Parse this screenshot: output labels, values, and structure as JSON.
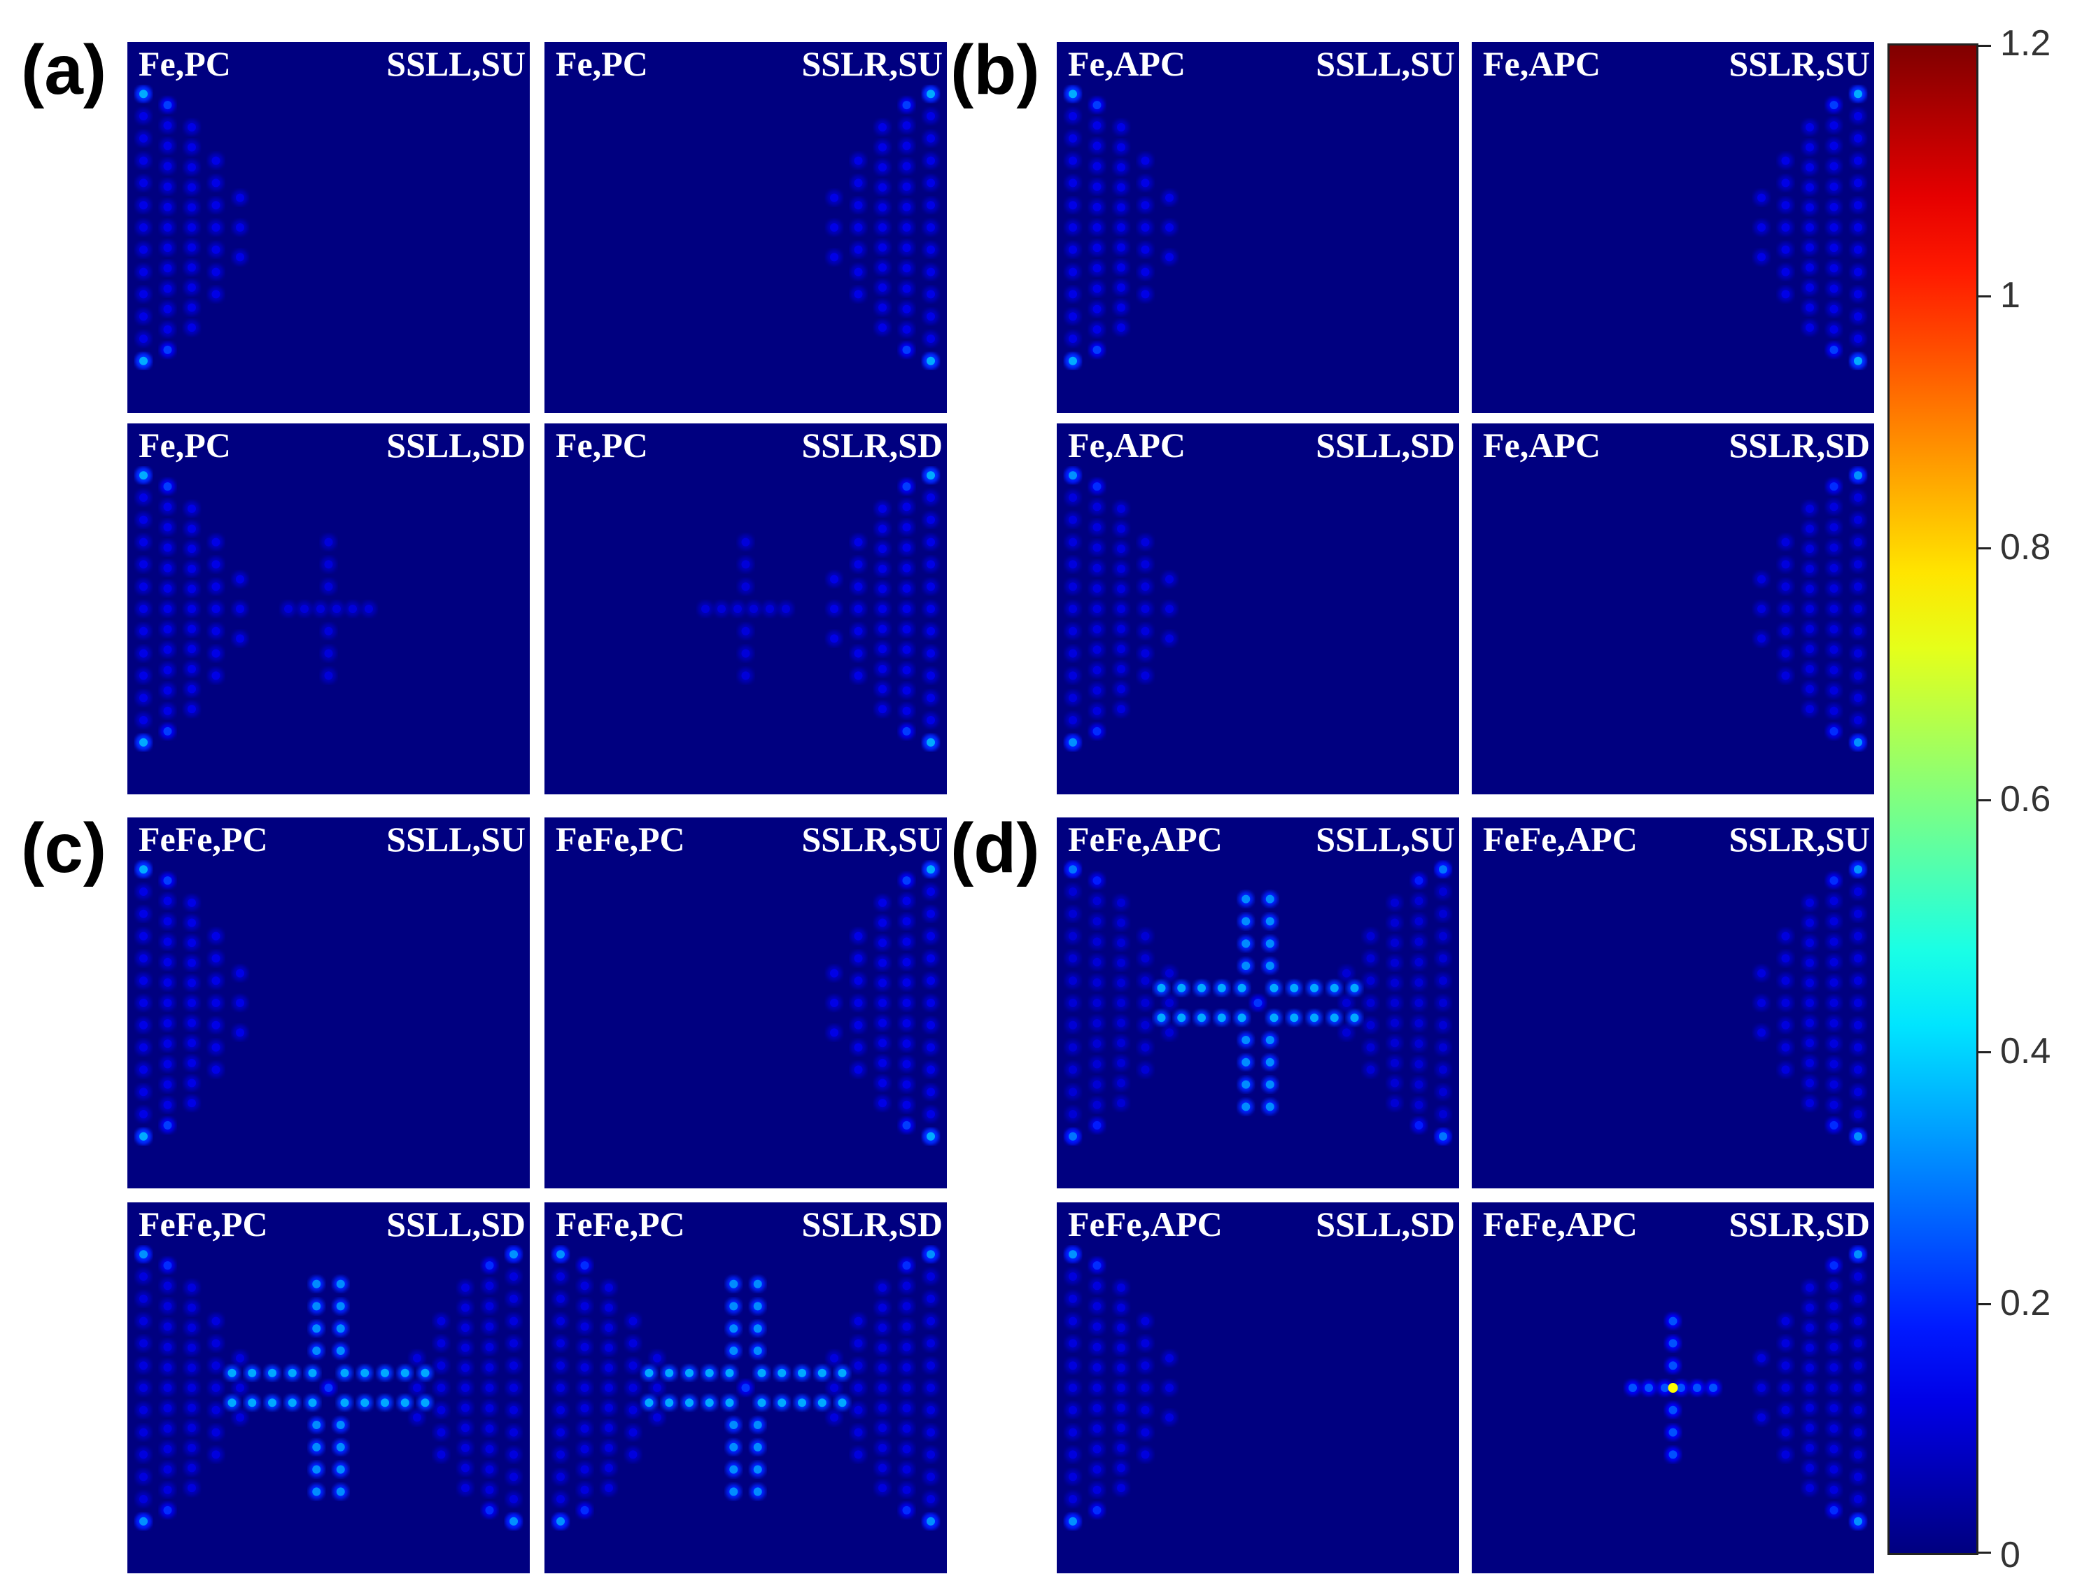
{
  "chart_data": {
    "type": "heatmap",
    "colormap": "jet",
    "colorbar": {
      "min": 0,
      "max": 1.2,
      "ticks": [
        0,
        0.2,
        0.4,
        0.6,
        0.8,
        1,
        1.2
      ],
      "tick_labels": [
        "0",
        "0.2",
        "0.4",
        "0.6",
        "0.8",
        "1",
        "1.2"
      ]
    },
    "panels": [
      {
        "letter": "(a)",
        "subplots": [
          {
            "left_label": "Fe,PC",
            "right_label": "SSLL,SU",
            "pattern": "left",
            "intensity": 0.22
          },
          {
            "left_label": "Fe,PC",
            "right_label": "SSLR,SU",
            "pattern": "right",
            "intensity": 0.22
          },
          {
            "left_label": "Fe,PC",
            "right_label": "SSLL,SD",
            "pattern": "left_center",
            "intensity": 0.22,
            "center_intensity": 0.15
          },
          {
            "left_label": "Fe,PC",
            "right_label": "SSLR,SD",
            "pattern": "right_center",
            "intensity": 0.22,
            "center_intensity": 0.15
          }
        ]
      },
      {
        "letter": "(b)",
        "subplots": [
          {
            "left_label": "Fe,APC",
            "right_label": "SSLL,SU",
            "pattern": "left",
            "intensity": 0.22
          },
          {
            "left_label": "Fe,APC",
            "right_label": "SSLR,SU",
            "pattern": "right",
            "intensity": 0.22
          },
          {
            "left_label": "Fe,APC",
            "right_label": "SSLL,SD",
            "pattern": "left",
            "intensity": 0.2
          },
          {
            "left_label": "Fe,APC",
            "right_label": "SSLR,SD",
            "pattern": "right",
            "intensity": 0.2
          }
        ]
      },
      {
        "letter": "(c)",
        "subplots": [
          {
            "left_label": "FeFe,PC",
            "right_label": "SSLL,SU",
            "pattern": "left",
            "intensity": 0.22
          },
          {
            "left_label": "FeFe,PC",
            "right_label": "SSLR,SU",
            "pattern": "right",
            "intensity": 0.22
          },
          {
            "left_label": "FeFe,PC",
            "right_label": "SSLL,SD",
            "pattern": "both_center",
            "intensity": 0.2,
            "center_intensity": 0.35
          },
          {
            "left_label": "FeFe,PC",
            "right_label": "SSLR,SD",
            "pattern": "both_center",
            "intensity": 0.2,
            "center_intensity": 0.35
          }
        ]
      },
      {
        "letter": "(d)",
        "subplots": [
          {
            "left_label": "FeFe,APC",
            "right_label": "SSLL,SU",
            "pattern": "both_center",
            "intensity": 0.18,
            "center_intensity": 0.35
          },
          {
            "left_label": "FeFe,APC",
            "right_label": "SSLR,SU",
            "pattern": "right",
            "intensity": 0.2
          },
          {
            "left_label": "FeFe,APC",
            "right_label": "SSLL,SD",
            "pattern": "left",
            "intensity": 0.2
          },
          {
            "left_label": "FeFe,APC",
            "right_label": "SSLR,SD",
            "pattern": "right_center",
            "intensity": 0.2,
            "center_intensity": 0.35,
            "hotspot": 0.75
          }
        ]
      }
    ]
  }
}
